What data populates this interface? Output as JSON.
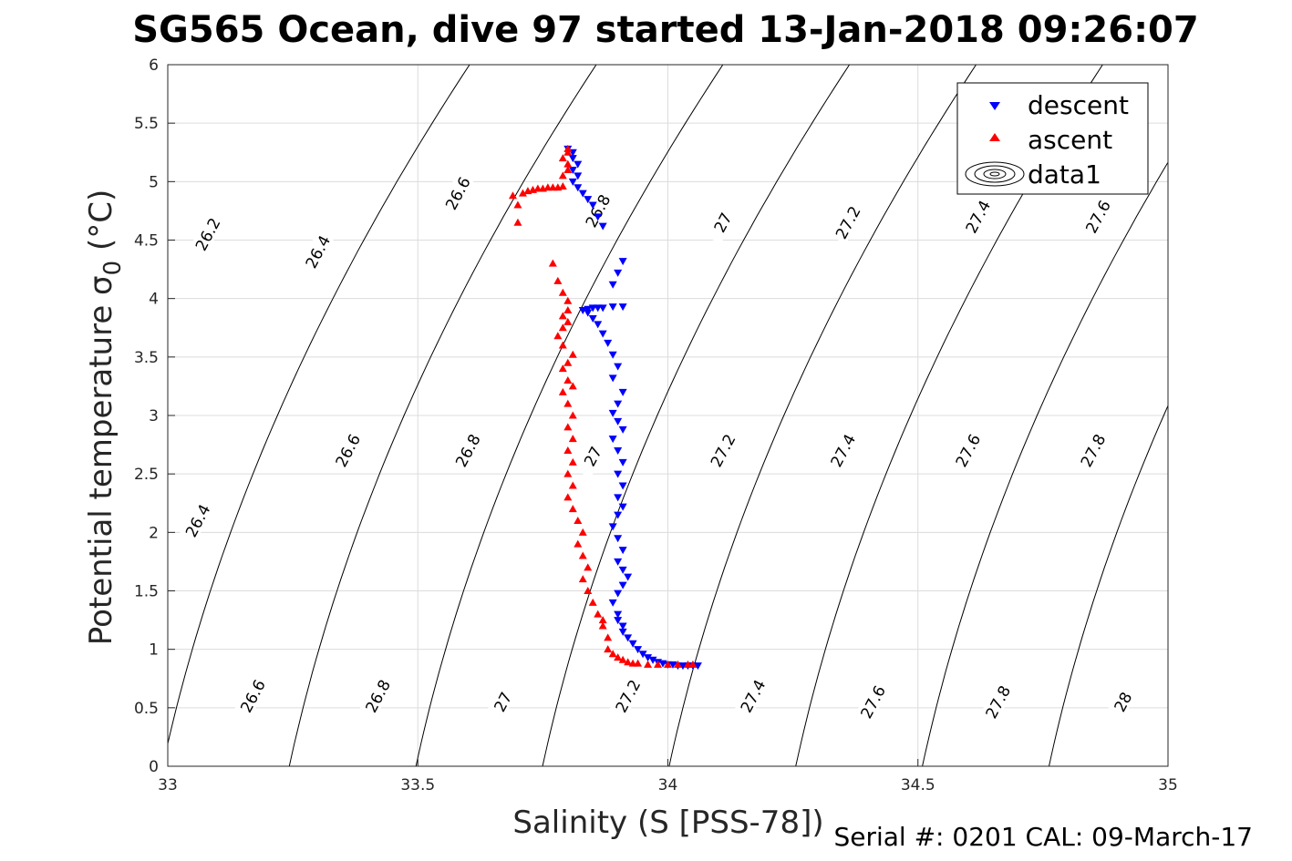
{
  "title": "SG565 Ocean, dive 97 started 13-Jan-2018 09:26:07",
  "footer": "Serial #: 0201  CAL: 09-March-17",
  "colors": {
    "descent": "#0000ff",
    "ascent": "#ff0000",
    "contour": "#000000",
    "grid": "#dcdcdc",
    "axis": "#262626"
  },
  "chart_data": {
    "type": "scatter",
    "xlabel": "Salinity (S [PSS-78])",
    "ylabel": "Potential temperature σ",
    "ylabel_sub": "0",
    "ylabel_tail": " (°C)",
    "xlim": [
      33,
      35
    ],
    "ylim": [
      0,
      6
    ],
    "xticks": [
      "33",
      "33.5",
      "34",
      "34.5",
      "35"
    ],
    "yticks": [
      "0",
      "0.5",
      "1",
      "1.5",
      "2",
      "2.5",
      "3",
      "3.5",
      "4",
      "4.5",
      "5",
      "5.5",
      "6"
    ],
    "grid": true,
    "legend_position": "top-right",
    "legend": [
      "descent",
      "ascent",
      "data1"
    ],
    "contours": {
      "levels": [
        "26.2",
        "26.4",
        "26.6",
        "26.8",
        "27",
        "27.2",
        "27.4",
        "27.6",
        "27.8",
        "28"
      ],
      "label_points": [
        {
          "text": "26.2",
          "s": 33.08,
          "t": 4.55
        },
        {
          "text": "26.4",
          "s": 33.3,
          "t": 4.4
        },
        {
          "text": "26.6",
          "s": 33.58,
          "t": 4.9
        },
        {
          "text": "26.8",
          "s": 33.86,
          "t": 4.75
        },
        {
          "text": "27",
          "s": 34.11,
          "t": 4.65
        },
        {
          "text": "27.2",
          "s": 34.36,
          "t": 4.65
        },
        {
          "text": "27.4",
          "s": 34.62,
          "t": 4.7
        },
        {
          "text": "27.6",
          "s": 34.86,
          "t": 4.7
        },
        {
          "text": "26.4",
          "s": 33.06,
          "t": 2.1
        },
        {
          "text": "26.6",
          "s": 33.36,
          "t": 2.7
        },
        {
          "text": "26.8",
          "s": 33.6,
          "t": 2.7
        },
        {
          "text": "27",
          "s": 33.85,
          "t": 2.65
        },
        {
          "text": "27.2",
          "s": 34.11,
          "t": 2.7
        },
        {
          "text": "27.4",
          "s": 34.35,
          "t": 2.7
        },
        {
          "text": "27.6",
          "s": 34.6,
          "t": 2.7
        },
        {
          "text": "27.8",
          "s": 34.85,
          "t": 2.7
        },
        {
          "text": "26.6",
          "s": 33.17,
          "t": 0.6
        },
        {
          "text": "26.8",
          "s": 33.42,
          "t": 0.6
        },
        {
          "text": "27",
          "s": 33.67,
          "t": 0.55
        },
        {
          "text": "27.2",
          "s": 33.92,
          "t": 0.6
        },
        {
          "text": "27.4",
          "s": 34.17,
          "t": 0.6
        },
        {
          "text": "27.6",
          "s": 34.41,
          "t": 0.55
        },
        {
          "text": "27.8",
          "s": 34.66,
          "t": 0.55
        },
        {
          "text": "28",
          "s": 34.91,
          "t": 0.55
        }
      ]
    },
    "series": [
      {
        "name": "descent",
        "points": [
          [
            33.8,
            5.28
          ],
          [
            33.81,
            5.25
          ],
          [
            33.81,
            5.2
          ],
          [
            33.82,
            5.15
          ],
          [
            33.81,
            5.1
          ],
          [
            33.82,
            5.05
          ],
          [
            33.81,
            5.0
          ],
          [
            33.82,
            4.95
          ],
          [
            33.83,
            4.9
          ],
          [
            33.84,
            4.85
          ],
          [
            33.85,
            4.8
          ],
          [
            33.86,
            4.7
          ],
          [
            33.87,
            4.62
          ],
          [
            33.91,
            4.32
          ],
          [
            33.9,
            4.22
          ],
          [
            33.89,
            4.12
          ],
          [
            33.91,
            3.93
          ],
          [
            33.89,
            3.93
          ],
          [
            33.87,
            3.92
          ],
          [
            33.86,
            3.92
          ],
          [
            33.85,
            3.92
          ],
          [
            33.84,
            3.91
          ],
          [
            33.83,
            3.9
          ],
          [
            33.84,
            3.88
          ],
          [
            33.85,
            3.83
          ],
          [
            33.86,
            3.78
          ],
          [
            33.87,
            3.7
          ],
          [
            33.88,
            3.62
          ],
          [
            33.89,
            3.52
          ],
          [
            33.9,
            3.42
          ],
          [
            33.89,
            3.32
          ],
          [
            33.91,
            3.2
          ],
          [
            33.9,
            3.1
          ],
          [
            33.89,
            3.02
          ],
          [
            33.9,
            2.95
          ],
          [
            33.91,
            2.88
          ],
          [
            33.89,
            2.8
          ],
          [
            33.9,
            2.7
          ],
          [
            33.91,
            2.6
          ],
          [
            33.9,
            2.5
          ],
          [
            33.91,
            2.4
          ],
          [
            33.9,
            2.3
          ],
          [
            33.91,
            2.22
          ],
          [
            33.9,
            2.15
          ],
          [
            33.89,
            2.05
          ],
          [
            33.9,
            1.95
          ],
          [
            33.91,
            1.85
          ],
          [
            33.9,
            1.75
          ],
          [
            33.91,
            1.68
          ],
          [
            33.92,
            1.62
          ],
          [
            33.91,
            1.55
          ],
          [
            33.9,
            1.48
          ],
          [
            33.89,
            1.4
          ],
          [
            33.9,
            1.3
          ],
          [
            33.9,
            1.25
          ],
          [
            33.91,
            1.2
          ],
          [
            33.91,
            1.15
          ],
          [
            33.92,
            1.1
          ],
          [
            33.93,
            1.05
          ],
          [
            33.94,
            1.0
          ],
          [
            33.95,
            0.96
          ],
          [
            33.96,
            0.93
          ],
          [
            33.97,
            0.91
          ],
          [
            33.98,
            0.89
          ],
          [
            33.99,
            0.88
          ],
          [
            34.0,
            0.87
          ],
          [
            34.01,
            0.87
          ],
          [
            34.02,
            0.86
          ],
          [
            34.03,
            0.86
          ],
          [
            34.04,
            0.86
          ],
          [
            34.05,
            0.86
          ],
          [
            34.06,
            0.86
          ]
        ]
      },
      {
        "name": "ascent",
        "points": [
          [
            33.69,
            4.88
          ],
          [
            33.7,
            4.8
          ],
          [
            33.7,
            4.65
          ],
          [
            33.71,
            4.9
          ],
          [
            33.72,
            4.92
          ],
          [
            33.73,
            4.93
          ],
          [
            33.74,
            4.94
          ],
          [
            33.75,
            4.94
          ],
          [
            33.76,
            4.95
          ],
          [
            33.77,
            4.95
          ],
          [
            33.78,
            4.95
          ],
          [
            33.79,
            4.96
          ],
          [
            33.79,
            5.05
          ],
          [
            33.8,
            5.1
          ],
          [
            33.8,
            5.15
          ],
          [
            33.79,
            5.2
          ],
          [
            33.8,
            5.25
          ],
          [
            33.8,
            5.28
          ],
          [
            33.77,
            4.3
          ],
          [
            33.78,
            4.15
          ],
          [
            33.79,
            4.05
          ],
          [
            33.8,
            3.98
          ],
          [
            33.8,
            3.9
          ],
          [
            33.79,
            3.85
          ],
          [
            33.8,
            3.8
          ],
          [
            33.79,
            3.75
          ],
          [
            33.78,
            3.68
          ],
          [
            33.79,
            3.6
          ],
          [
            33.81,
            3.52
          ],
          [
            33.8,
            3.45
          ],
          [
            33.79,
            3.4
          ],
          [
            33.8,
            3.3
          ],
          [
            33.81,
            3.25
          ],
          [
            33.79,
            3.2
          ],
          [
            33.8,
            3.1
          ],
          [
            33.81,
            3.0
          ],
          [
            33.8,
            2.9
          ],
          [
            33.81,
            2.8
          ],
          [
            33.8,
            2.7
          ],
          [
            33.81,
            2.6
          ],
          [
            33.8,
            2.5
          ],
          [
            33.81,
            2.4
          ],
          [
            33.8,
            2.3
          ],
          [
            33.81,
            2.2
          ],
          [
            33.82,
            2.1
          ],
          [
            33.83,
            2.0
          ],
          [
            33.82,
            1.9
          ],
          [
            33.83,
            1.8
          ],
          [
            33.84,
            1.7
          ],
          [
            33.83,
            1.6
          ],
          [
            33.84,
            1.5
          ],
          [
            33.85,
            1.4
          ],
          [
            33.86,
            1.3
          ],
          [
            33.87,
            1.25
          ],
          [
            33.87,
            1.2
          ],
          [
            33.88,
            1.1
          ],
          [
            33.88,
            1.0
          ],
          [
            33.89,
            0.96
          ],
          [
            33.9,
            0.93
          ],
          [
            33.91,
            0.91
          ],
          [
            33.92,
            0.89
          ],
          [
            33.93,
            0.88
          ],
          [
            33.94,
            0.88
          ],
          [
            33.96,
            0.87
          ],
          [
            33.98,
            0.87
          ],
          [
            34.0,
            0.87
          ],
          [
            34.02,
            0.87
          ],
          [
            34.04,
            0.87
          ],
          [
            34.05,
            0.87
          ]
        ]
      }
    ]
  }
}
